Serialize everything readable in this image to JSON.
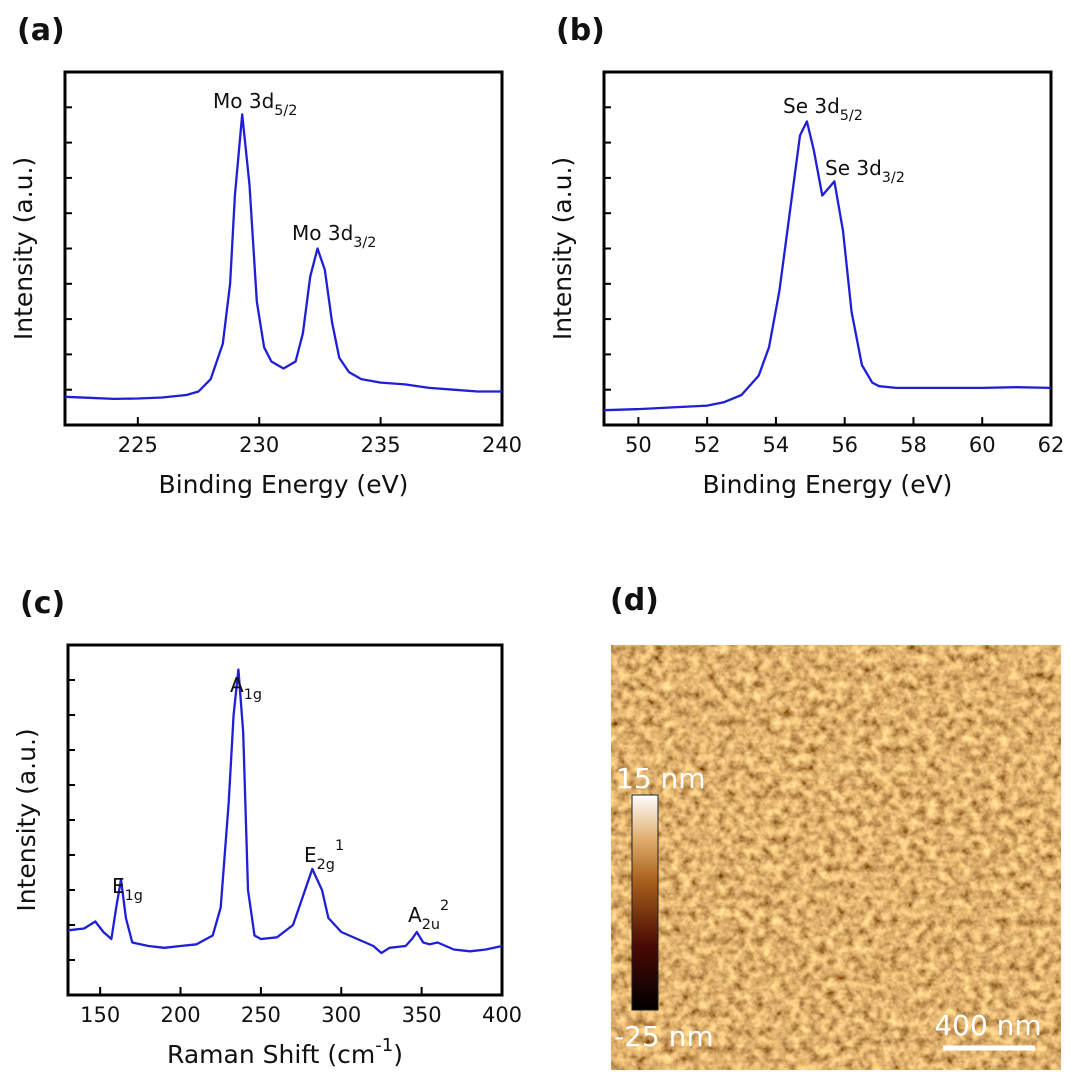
{
  "chart_data": [
    {
      "type": "line",
      "panel_label": "(a)",
      "xlabel": {
        "text": "Binding Energy (eV)"
      },
      "ylabel": {
        "text": "Intensity (a.u.)"
      },
      "xlim": [
        222,
        240
      ],
      "xticks": [
        225,
        230,
        235,
        240
      ],
      "ylim": [
        0,
        10
      ],
      "yticks": [
        1,
        2,
        3,
        4,
        5,
        6,
        7,
        8,
        9
      ],
      "annotations": [
        {
          "text": "Mo 3d",
          "sub": "5/2"
        },
        {
          "text": "Mo 3d",
          "sub": "3/2"
        }
      ],
      "x": [
        222,
        223,
        224,
        225,
        226,
        227,
        227.5,
        228,
        228.5,
        228.8,
        229,
        229.3,
        229.6,
        229.9,
        230.2,
        230.5,
        231,
        231.5,
        231.8,
        232.1,
        232.4,
        232.7,
        233,
        233.3,
        233.7,
        234.2,
        235,
        236,
        237,
        238,
        239,
        240
      ],
      "series": [
        {
          "color": "#1f1fd6",
          "values": [
            0.8,
            0.77,
            0.74,
            0.75,
            0.78,
            0.85,
            0.95,
            1.3,
            2.3,
            4.0,
            6.5,
            8.8,
            6.8,
            3.5,
            2.2,
            1.8,
            1.6,
            1.8,
            2.6,
            4.2,
            5.0,
            4.4,
            2.9,
            1.9,
            1.5,
            1.3,
            1.2,
            1.15,
            1.05,
            1.0,
            0.95,
            0.95
          ]
        }
      ]
    },
    {
      "type": "line",
      "panel_label": "(b)",
      "xlabel": {
        "text": "Binding Energy (eV)"
      },
      "ylabel": {
        "text": "Intensity (a.u.)"
      },
      "xlim": [
        49,
        62
      ],
      "xticks": [
        50,
        52,
        54,
        56,
        58,
        60,
        62
      ],
      "ylim": [
        0,
        10
      ],
      "yticks": [
        1,
        2,
        3,
        4,
        5,
        6,
        7,
        8,
        9
      ],
      "annotations": [
        {
          "text": "Se 3d",
          "sub": "5/2"
        },
        {
          "text": "Se 3d",
          "sub": "3/2"
        }
      ],
      "x": [
        49,
        50,
        51,
        52,
        52.5,
        53,
        53.5,
        53.8,
        54.1,
        54.4,
        54.7,
        54.9,
        55.1,
        55.35,
        55.7,
        55.95,
        56.2,
        56.5,
        56.8,
        57,
        57.5,
        58,
        59,
        60,
        61,
        62
      ],
      "series": [
        {
          "color": "#1f1fd6",
          "values": [
            0.42,
            0.45,
            0.5,
            0.55,
            0.65,
            0.85,
            1.4,
            2.2,
            3.8,
            6.0,
            8.2,
            8.6,
            7.8,
            6.5,
            6.9,
            5.5,
            3.2,
            1.7,
            1.2,
            1.1,
            1.05,
            1.05,
            1.05,
            1.05,
            1.07,
            1.05
          ]
        }
      ]
    },
    {
      "type": "line",
      "panel_label": "(c)",
      "xlabel": {
        "text": "Raman Shift (cm",
        "sup": "-1",
        "after": ")"
      },
      "ylabel": {
        "text": "Intensity (a.u.)"
      },
      "xlim": [
        130,
        400
      ],
      "xticks": [
        150,
        200,
        250,
        300,
        350,
        400
      ],
      "ylim": [
        0,
        10
      ],
      "yticks": [
        1,
        2,
        3,
        4,
        5,
        6,
        7,
        8,
        9
      ],
      "annotations": [
        {
          "text": "E",
          "sub": "1g"
        },
        {
          "text": "A",
          "sub": "1g"
        },
        {
          "text": "E",
          "sub": "2g",
          "sup": "1"
        },
        {
          "text": "A",
          "sub": "2u",
          "sup": "2"
        }
      ],
      "x": [
        130,
        140,
        147,
        152,
        157,
        160,
        163,
        166,
        170,
        180,
        190,
        200,
        210,
        220,
        225,
        230,
        233,
        236,
        239,
        242,
        246,
        250,
        260,
        270,
        276,
        282,
        288,
        292,
        300,
        310,
        320,
        325,
        330,
        340,
        344,
        347,
        351,
        355,
        360,
        370,
        380,
        390,
        400
      ],
      "series": [
        {
          "color": "#1f1fd6",
          "values": [
            1.85,
            1.9,
            2.1,
            1.8,
            1.6,
            2.5,
            3.3,
            2.2,
            1.5,
            1.4,
            1.35,
            1.4,
            1.45,
            1.7,
            2.5,
            5.5,
            8.0,
            9.3,
            7.5,
            3.0,
            1.7,
            1.6,
            1.65,
            2.0,
            2.8,
            3.6,
            3.0,
            2.2,
            1.8,
            1.6,
            1.4,
            1.2,
            1.35,
            1.4,
            1.6,
            1.8,
            1.5,
            1.45,
            1.5,
            1.3,
            1.25,
            1.3,
            1.4
          ]
        }
      ]
    }
  ],
  "afm_panel": {
    "panel_label": "(d)",
    "colorbar_max": "15 nm",
    "colorbar_min": "-25 nm",
    "scale_bar_label": "400 nm"
  }
}
